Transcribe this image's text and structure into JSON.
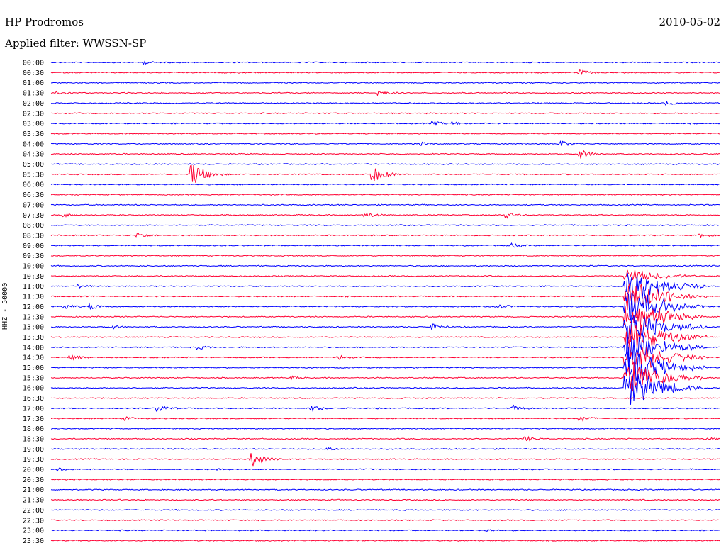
{
  "header": {
    "station": "HP Prodromos",
    "date": "2010-05-02",
    "filter": "Applied filter: WWSSN-SP"
  },
  "chart_data": {
    "type": "line",
    "title": "HP Prodromos",
    "ylabel": "HHZ - 50000",
    "colors": {
      "even": "#0000ff",
      "odd": "#ff0033"
    },
    "rows": [
      "00:00",
      "00:30",
      "01:00",
      "01:30",
      "02:00",
      "02:30",
      "03:00",
      "03:30",
      "04:00",
      "04:30",
      "05:00",
      "05:30",
      "06:00",
      "06:30",
      "07:00",
      "07:30",
      "08:00",
      "08:30",
      "09:00",
      "09:30",
      "10:00",
      "10:30",
      "11:00",
      "11:30",
      "12:00",
      "12:30",
      "13:00",
      "13:30",
      "14:00",
      "14:30",
      "15:00",
      "15:30",
      "16:00",
      "16:30",
      "17:00",
      "17:30",
      "18:00",
      "18:30",
      "19:00",
      "19:30",
      "20:00",
      "20:30",
      "21:00",
      "21:30",
      "22:00",
      "22:30",
      "23:00",
      "23:30"
    ],
    "events": [
      {
        "row": 0,
        "x": 0.14,
        "amp": 5
      },
      {
        "row": 1,
        "x": 0.79,
        "amp": 8
      },
      {
        "row": 3,
        "x": 0.01,
        "amp": 6
      },
      {
        "row": 3,
        "x": 0.49,
        "amp": 9
      },
      {
        "row": 4,
        "x": 0.92,
        "amp": 6
      },
      {
        "row": 6,
        "x": 0.57,
        "amp": 7
      },
      {
        "row": 6,
        "x": 0.6,
        "amp": 6
      },
      {
        "row": 8,
        "x": 0.55,
        "amp": 6
      },
      {
        "row": 8,
        "x": 0.76,
        "amp": 10
      },
      {
        "row": 9,
        "x": 0.79,
        "amp": 14
      },
      {
        "row": 11,
        "x": 0.21,
        "amp": 40
      },
      {
        "row": 11,
        "x": 0.48,
        "amp": 25
      },
      {
        "row": 15,
        "x": 0.02,
        "amp": 6
      },
      {
        "row": 15,
        "x": 0.47,
        "amp": 9
      },
      {
        "row": 15,
        "x": 0.68,
        "amp": 9
      },
      {
        "row": 17,
        "x": 0.13,
        "amp": 9
      },
      {
        "row": 17,
        "x": 0.97,
        "amp": 6
      },
      {
        "row": 18,
        "x": 0.69,
        "amp": 7
      },
      {
        "row": 22,
        "x": 0.04,
        "amp": 6
      },
      {
        "row": 24,
        "x": 0.02,
        "amp": 8
      },
      {
        "row": 24,
        "x": 0.06,
        "amp": 10
      },
      {
        "row": 24,
        "x": 0.67,
        "amp": 7
      },
      {
        "row": 26,
        "x": 0.09,
        "amp": 6
      },
      {
        "row": 26,
        "x": 0.57,
        "amp": 9
      },
      {
        "row": 28,
        "x": 0.22,
        "amp": 7
      },
      {
        "row": 29,
        "x": 0.03,
        "amp": 8
      },
      {
        "row": 29,
        "x": 0.43,
        "amp": 7
      },
      {
        "row": 29,
        "x": 0.95,
        "amp": 6
      },
      {
        "row": 31,
        "x": 0.36,
        "amp": 6
      },
      {
        "row": 34,
        "x": 0.16,
        "amp": 10
      },
      {
        "row": 34,
        "x": 0.39,
        "amp": 8
      },
      {
        "row": 34,
        "x": 0.69,
        "amp": 9
      },
      {
        "row": 35,
        "x": 0.11,
        "amp": 6
      },
      {
        "row": 35,
        "x": 0.79,
        "amp": 9
      },
      {
        "row": 37,
        "x": 0.71,
        "amp": 7
      },
      {
        "row": 37,
        "x": 0.98,
        "amp": 5
      },
      {
        "row": 38,
        "x": 0.41,
        "amp": 6
      },
      {
        "row": 39,
        "x": 0.3,
        "amp": 22
      },
      {
        "row": 40,
        "x": 0.01,
        "amp": 6
      },
      {
        "row": 40,
        "x": 0.25,
        "amp": 5
      },
      {
        "row": 46,
        "x": 0.65,
        "amp": 5
      }
    ],
    "major_event": {
      "start_row": 21,
      "end_row": 32,
      "x": 0.86,
      "amp": 75
    }
  }
}
